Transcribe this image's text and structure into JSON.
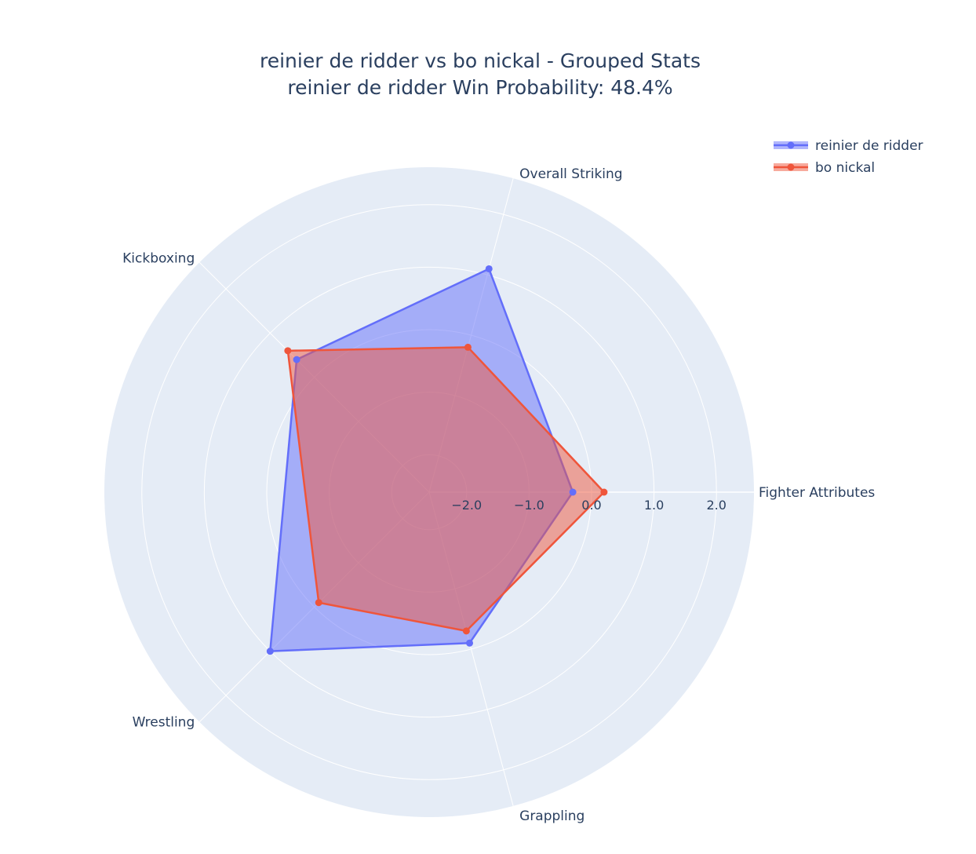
{
  "chart_data": {
    "type": "radar",
    "title": "reinier de ridder vs bo nickal - Grouped Stats",
    "subtitle": "reinier de ridder Win Probability: 48.4%",
    "categories": [
      "Fighter Attributes",
      "Overall Striking",
      "Kickboxing",
      "Wrestling",
      "Grappling"
    ],
    "radial_range": [
      -2.6,
      2.6
    ],
    "radial_ticks": [
      -2,
      -1,
      0,
      1,
      2
    ],
    "radial_tick_labels": [
      "−2.0",
      "−1.0",
      "0.0",
      "1.0",
      "2.0"
    ],
    "grid": true,
    "legend_position": "top-right",
    "colors": {
      "polar_background": "#e5ecf6",
      "grid": "#ffffff",
      "text": "#2a3f5f"
    },
    "series": [
      {
        "name": "reinier de ridder",
        "color": "#636efa",
        "values": [
          -0.3,
          1.1,
          0.4,
          1.0,
          -0.1
        ]
      },
      {
        "name": "bo nickal",
        "color": "#ef553b",
        "values": [
          0.2,
          -0.2,
          0.6,
          -0.1,
          -0.3
        ]
      }
    ]
  }
}
